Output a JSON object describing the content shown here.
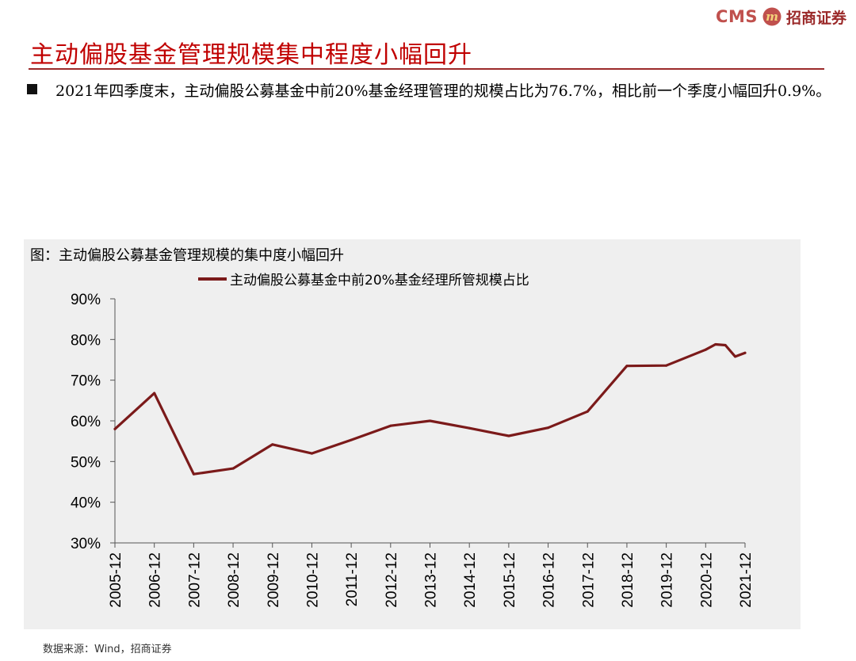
{
  "brand": {
    "cms": "CMS",
    "logo_glyph": "m",
    "name": "招商证券"
  },
  "page_title": "主动偏股基金管理规模集中程度小幅回升",
  "bullet": {
    "text": "2021年四季度末，主动偏股公募基金中前20%基金经理管理的规模占比为76.7%，相比前一个季度小幅回升0.9%。"
  },
  "chart_data": {
    "type": "line",
    "title": "图：主动偏股公募基金管理规模的集中度小幅回升",
    "legend": "主动偏股公募基金中前20%基金经理所管规模占比",
    "legend_position": "top",
    "xlabel": "",
    "ylabel": "",
    "ylim": [
      30,
      90
    ],
    "yticks": [
      "30%",
      "40%",
      "50%",
      "60%",
      "70%",
      "80%",
      "90%"
    ],
    "ytick_values": [
      30,
      40,
      50,
      60,
      70,
      80,
      90
    ],
    "xticks": [
      "2005-12",
      "2006-12",
      "2007-12",
      "2008-12",
      "2009-12",
      "2010-12",
      "2011-12",
      "2012-12",
      "2013-12",
      "2014-12",
      "2015-12",
      "2016-12",
      "2017-12",
      "2018-12",
      "2019-12",
      "2020-12",
      "2021-12"
    ],
    "line_color": "#7b1a1a",
    "x": [
      "2005-12",
      "2006-12",
      "2007-12",
      "2008-12",
      "2009-12",
      "2010-12",
      "2011-12",
      "2012-12",
      "2013-12",
      "2014-12",
      "2015-12",
      "2016-12",
      "2017-12",
      "2018-12",
      "2019-12",
      "2020-12",
      "2021-03",
      "2021-06",
      "2021-09",
      "2021-12"
    ],
    "values": [
      58.0,
      66.8,
      46.9,
      48.3,
      54.2,
      52.0,
      55.3,
      58.8,
      60.0,
      58.2,
      56.3,
      58.3,
      62.3,
      73.5,
      73.6,
      77.5,
      78.8,
      78.6,
      75.8,
      76.7
    ],
    "grid": false
  },
  "source": "数据来源：Wind，招商证券"
}
